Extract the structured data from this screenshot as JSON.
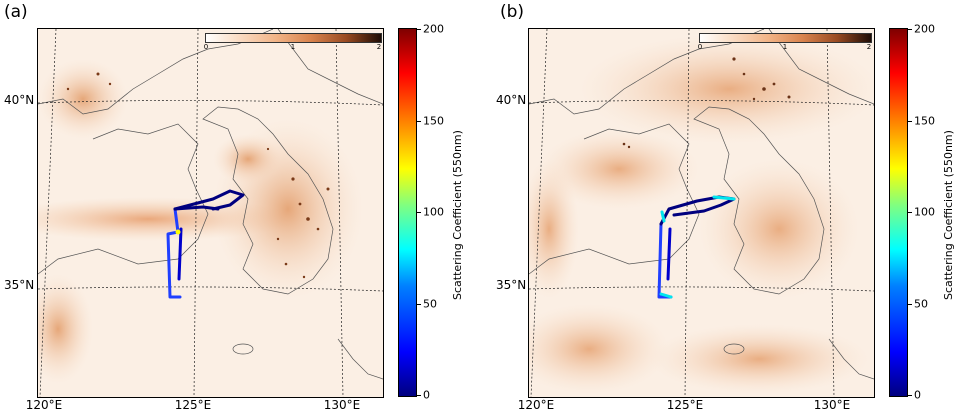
{
  "figure": {
    "panels": [
      {
        "label": "(a)",
        "lat_labels": [
          "40°N",
          "35°N"
        ],
        "lon_labels": [
          "120°E",
          "125°E",
          "130°E"
        ],
        "inset_colorbar": {
          "ticks": [
            "0",
            "1",
            "2"
          ]
        },
        "colorbar": {
          "ticks": [
            "200",
            "150",
            "100",
            "50",
            "0"
          ],
          "label": "Scattering Coefficient (550nm)"
        },
        "flight_track_colors": [
          "#00007f",
          "#0000cc",
          "#1f3fff",
          "#ffff00"
        ]
      },
      {
        "label": "(b)",
        "lat_labels": [
          "40°N",
          "35°N"
        ],
        "lon_labels": [
          "120°E",
          "125°E",
          "130°E"
        ],
        "inset_colorbar": {
          "ticks": [
            "0",
            "1",
            "2"
          ]
        },
        "colorbar": {
          "ticks": [
            "200",
            "150",
            "100",
            "50",
            "0"
          ],
          "label": "Scattering Coefficient (550nm)"
        },
        "flight_track_colors": [
          "#00007f",
          "#0000cc",
          "#1f3fff",
          "#00e5ee"
        ]
      }
    ],
    "colors": {
      "aerosol_light": "#fdf6ee",
      "aerosol_mid": "#e9a272",
      "aerosol_dark": "#6b3317",
      "coastline": "#555555"
    }
  }
}
